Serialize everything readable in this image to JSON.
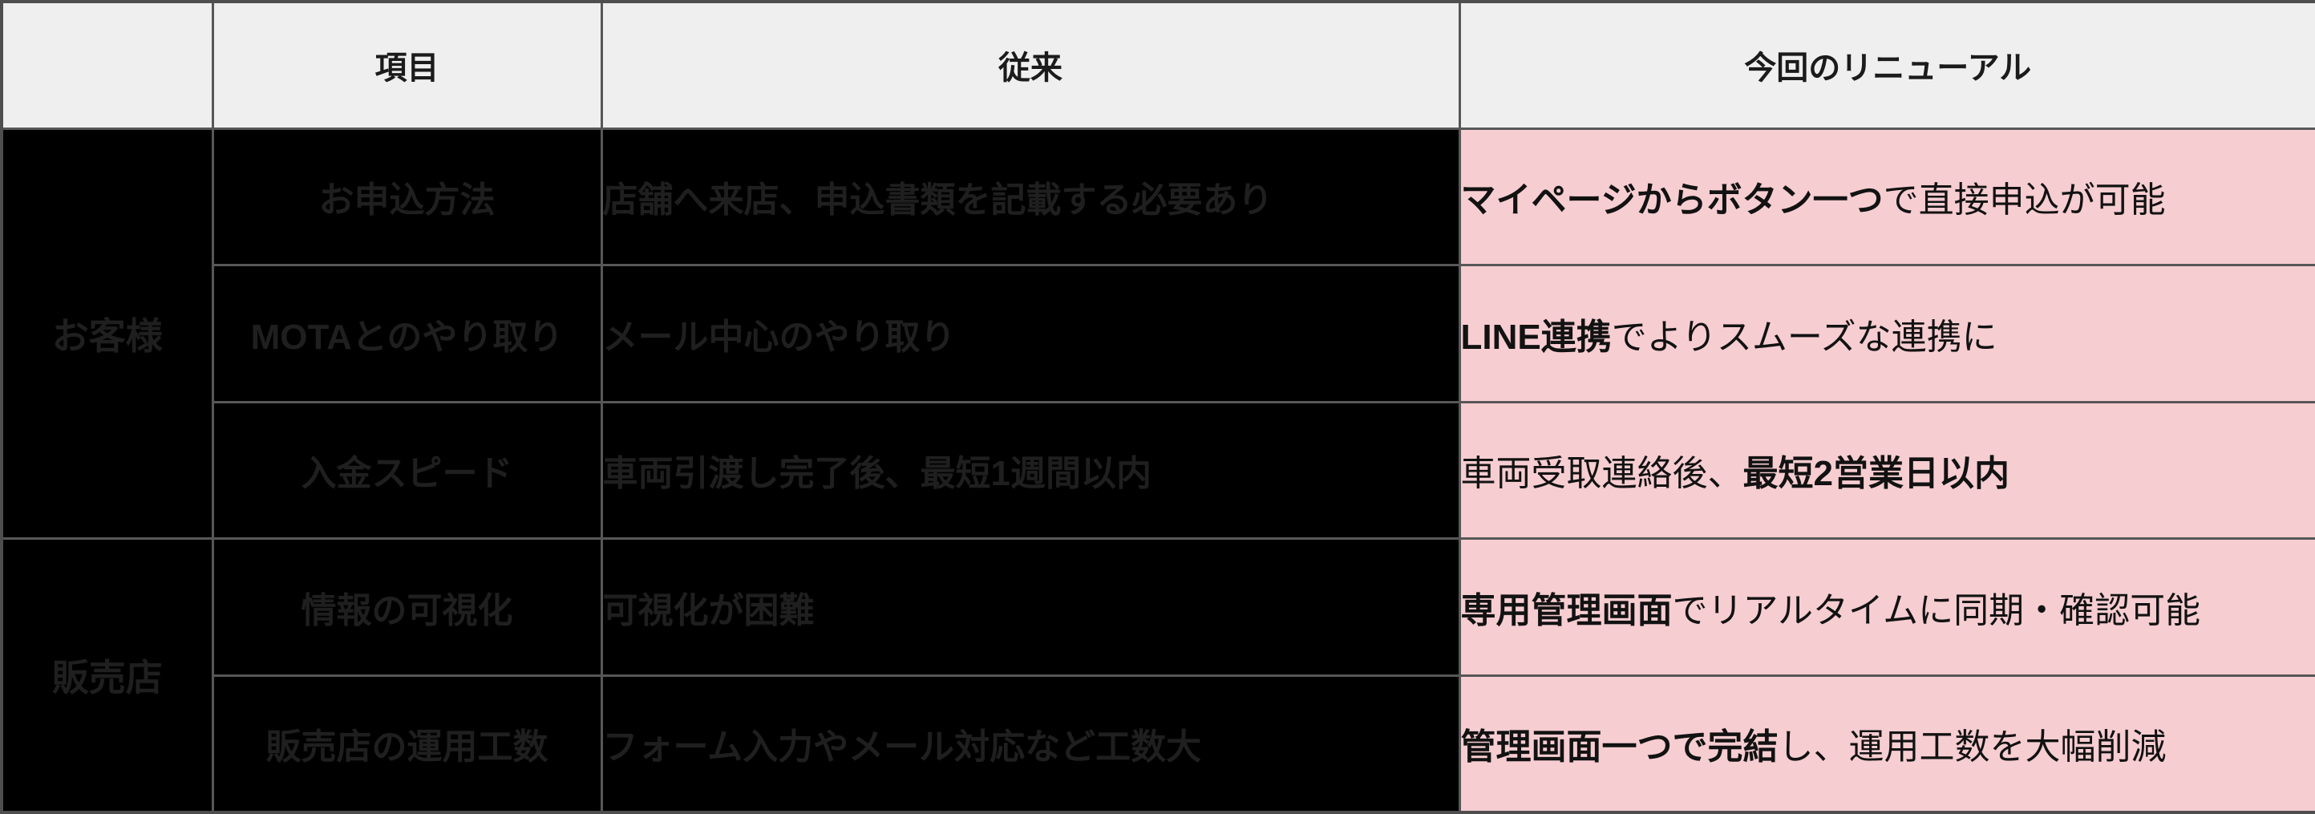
{
  "colors": {
    "header_bg": "#efefef",
    "renewal_bg": "#f6cdd1",
    "redacted_bg": "#000000",
    "redacted_text": "#1f1f1f",
    "border": "#575757"
  },
  "table": {
    "columns": [
      {
        "label": ""
      },
      {
        "label": "項目"
      },
      {
        "label": "従来"
      },
      {
        "label": "今回のリニューアル"
      }
    ],
    "groups": [
      {
        "label": "お客様",
        "redacted": true,
        "rows": [
          {
            "item": "お申込方法",
            "legacy": "店舗へ来店、申込書類を記載する必要あり",
            "redacted": true,
            "renewal": [
              {
                "text": "マイページからボタン一つ",
                "bold": true
              },
              {
                "text": "で直接申込が可能",
                "bold": false
              }
            ]
          },
          {
            "item": "MOTAとのやり取り",
            "legacy": "メール中心のやり取り",
            "redacted": true,
            "renewal": [
              {
                "text": "LINE連携",
                "bold": true
              },
              {
                "text": "でよりスムーズな連携に",
                "bold": false
              }
            ]
          },
          {
            "item": "入金スピード",
            "legacy": "車両引渡し完了後、最短1週間以内",
            "redacted": true,
            "renewal": [
              {
                "text": "車両受取連絡後、",
                "bold": false
              },
              {
                "text": "最短2営業日以内",
                "bold": true
              }
            ]
          }
        ]
      },
      {
        "label": "販売店",
        "redacted": true,
        "rows": [
          {
            "item": "情報の可視化",
            "legacy": "可視化が困難",
            "redacted": true,
            "renewal": [
              {
                "text": "専用管理画面",
                "bold": true
              },
              {
                "text": "でリアルタイムに同期・確認可能",
                "bold": false
              }
            ]
          },
          {
            "item": "販売店の運用工数",
            "legacy": "フォーム入力やメール対応など工数大",
            "redacted": true,
            "renewal": [
              {
                "text": "管理画面一つで完結",
                "bold": true
              },
              {
                "text": "し、運用工数を大幅削減",
                "bold": false
              }
            ]
          }
        ]
      }
    ]
  }
}
